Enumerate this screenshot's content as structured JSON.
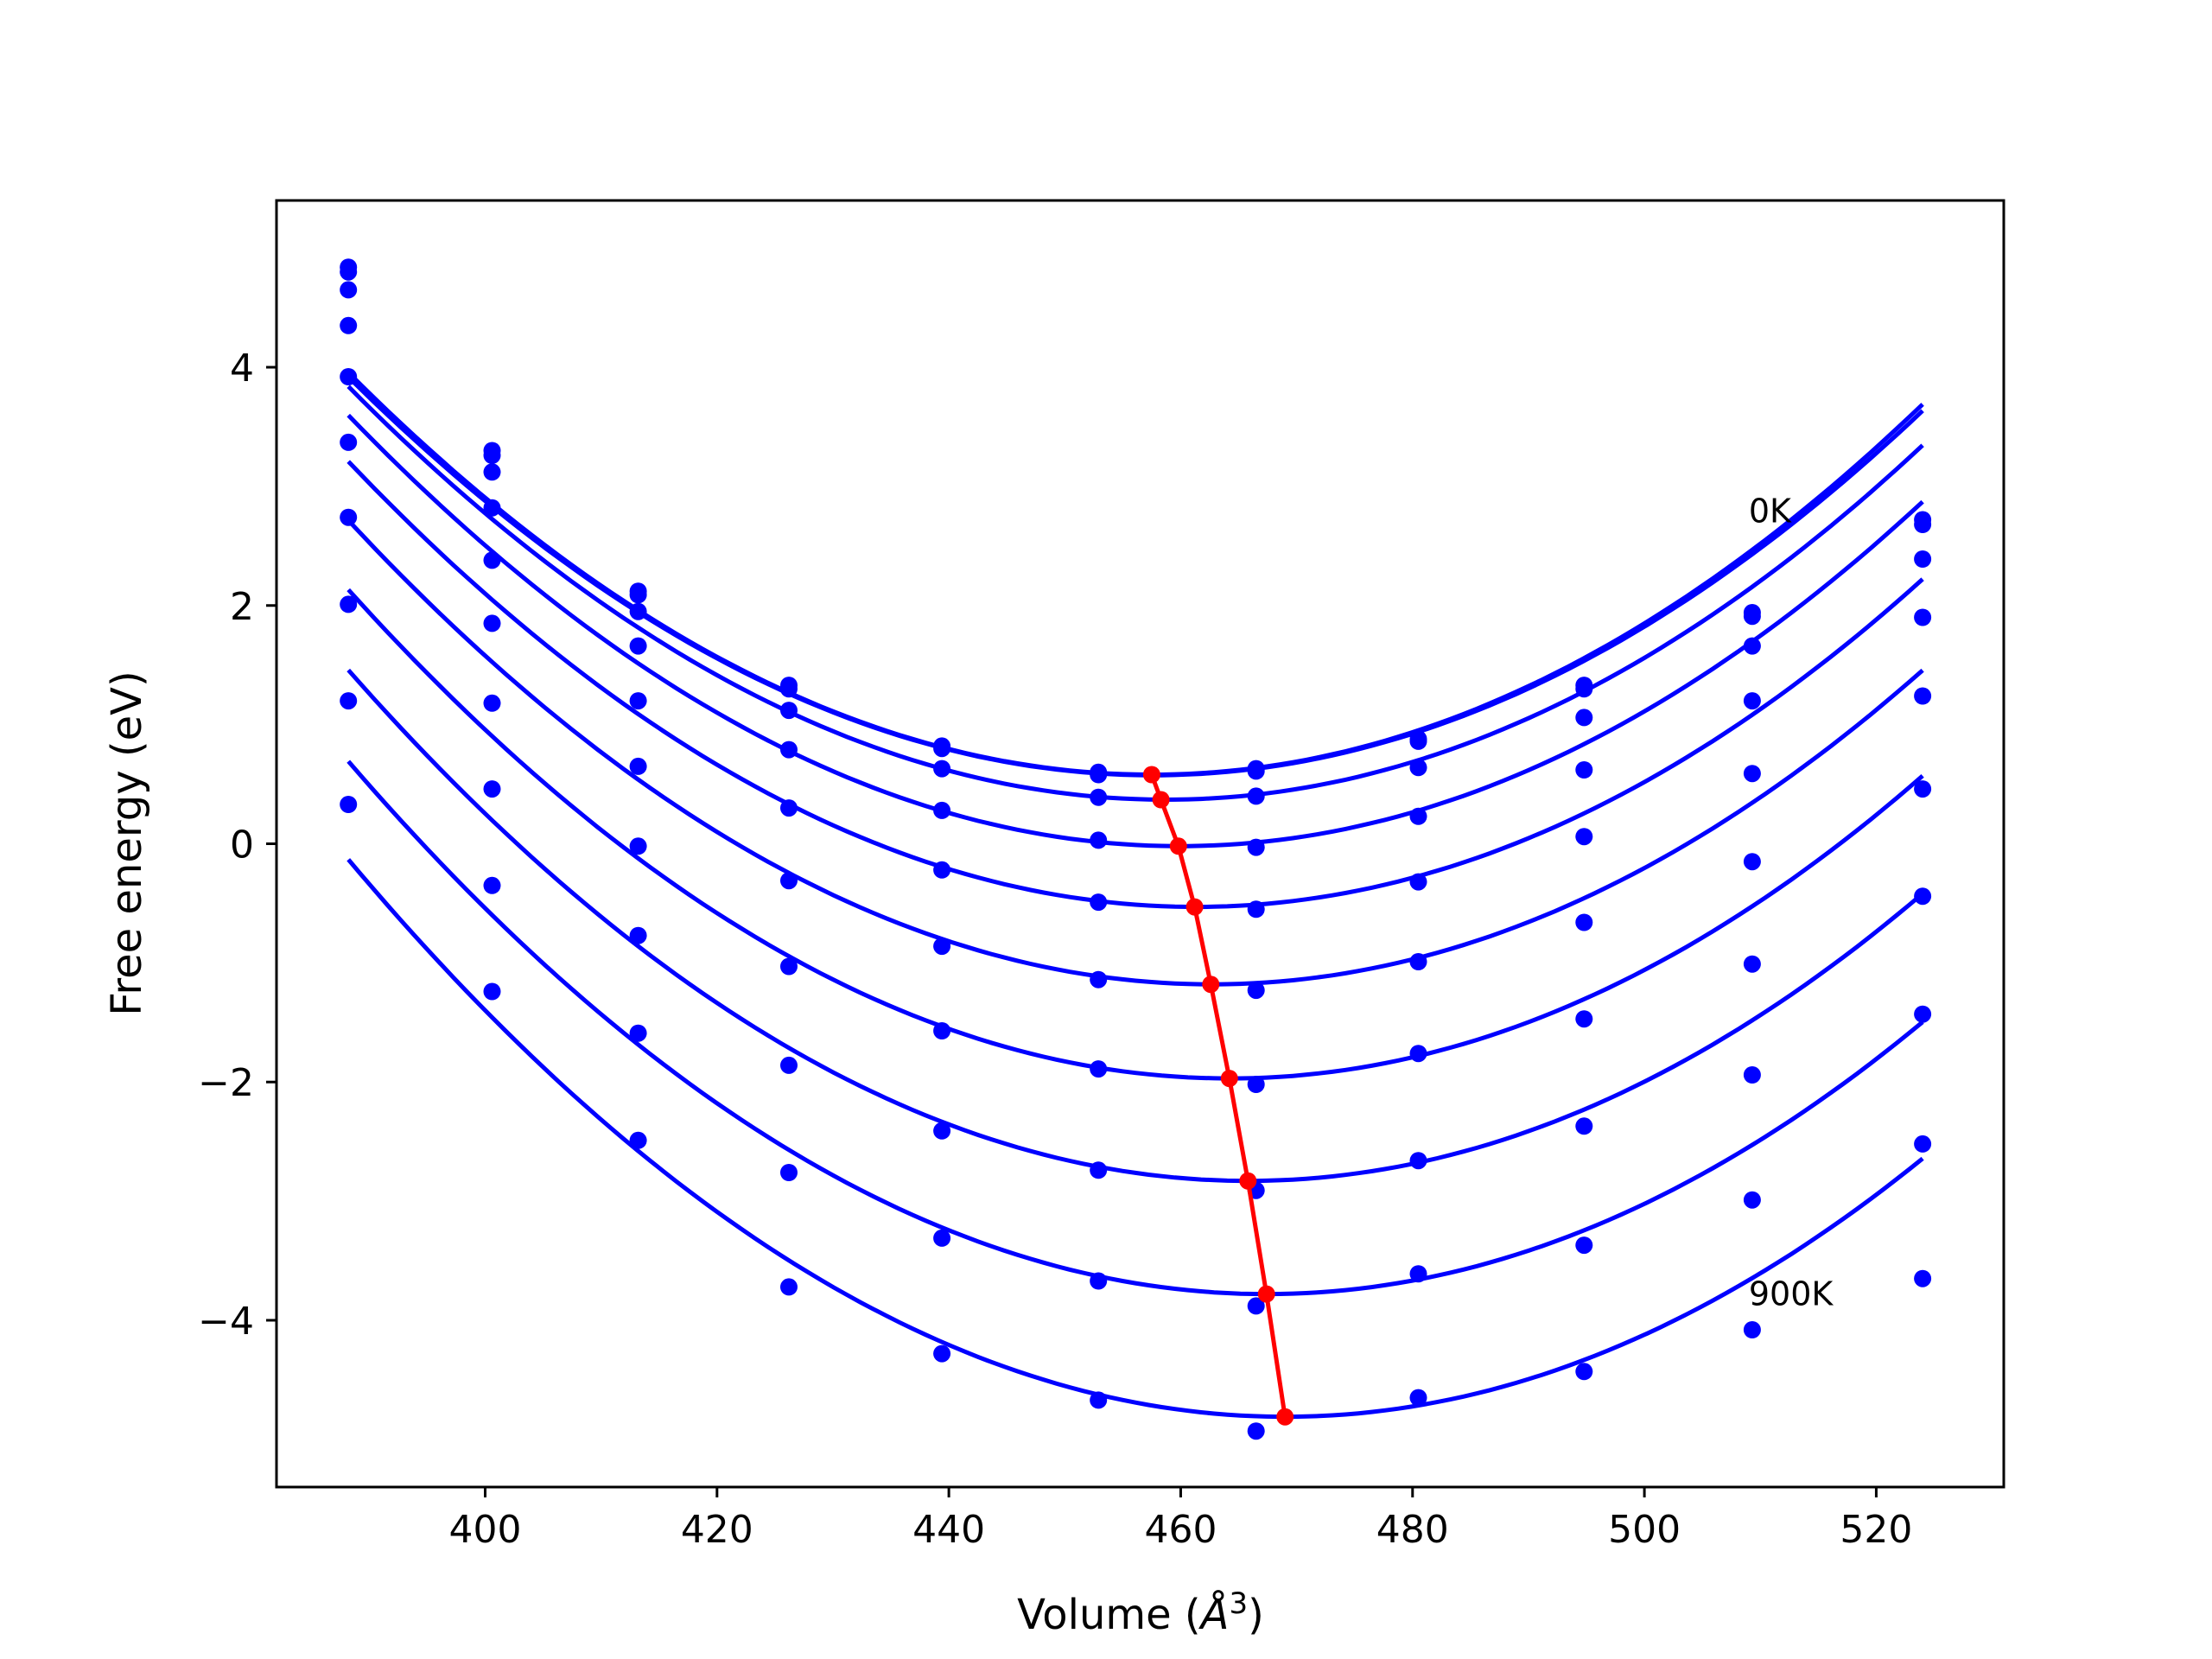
{
  "chart_data": {
    "type": "line",
    "title": "",
    "xlabel": "Volume (",
    "xlabel_unit": "Å",
    "xlabel_sup": "3",
    "xlabel_close": ")",
    "ylabel": "Free energy (eV)",
    "xlim": [
      382,
      531
    ],
    "ylim": [
      -5.4,
      5.4
    ],
    "xticks": [
      400,
      420,
      440,
      460,
      480,
      500,
      520
    ],
    "xtick_labels": [
      "400",
      "420",
      "440",
      "460",
      "480",
      "500",
      "520"
    ],
    "yticks": [
      -4,
      -2,
      0,
      2,
      4
    ],
    "ytick_labels": [
      "−4",
      "−2",
      "0",
      "2",
      "4"
    ],
    "grid": false,
    "legend": "none",
    "annotations": [
      {
        "text": "0K",
        "x": 509,
        "y": 2.8
      },
      {
        "text": "900K",
        "x": 509,
        "y": -3.77
      }
    ],
    "x": [
      388.2,
      400.6,
      413.2,
      426.2,
      439.4,
      452.9,
      466.5,
      480.5,
      494.8,
      509.3,
      524.0
    ],
    "series": [
      {
        "values": [
          4.84,
          3.3,
          2.12,
          1.33,
          0.82,
          0.6,
          0.63,
          0.88,
          1.33,
          1.94,
          2.72
        ],
        "fit_min": [
          457.5,
          0.58
        ]
      },
      {
        "values": [
          4.8,
          3.26,
          2.09,
          1.3,
          0.8,
          0.58,
          0.61,
          0.86,
          1.3,
          1.91,
          2.68
        ],
        "fit_min": [
          457.6,
          0.575
        ]
      },
      {
        "values": [
          4.65,
          3.12,
          1.95,
          1.12,
          0.63,
          0.39,
          0.4,
          0.64,
          1.06,
          1.66,
          2.39
        ],
        "fit_min": [
          458.7,
          0.37
        ]
      },
      {
        "values": [
          4.35,
          2.82,
          1.66,
          0.79,
          0.28,
          0.03,
          -0.03,
          0.23,
          0.62,
          1.2,
          1.9
        ],
        "fit_min": [
          459.9,
          -0.02
        ]
      },
      {
        "values": [
          3.92,
          2.38,
          1.2,
          0.3,
          -0.22,
          -0.49,
          -0.55,
          -0.32,
          0.06,
          0.59,
          1.24
        ],
        "fit_min": [
          461.3,
          -0.53
        ]
      },
      {
        "values": [
          3.37,
          1.85,
          0.65,
          -0.31,
          -0.86,
          -1.14,
          -1.23,
          -0.99,
          -0.66,
          -0.15,
          0.46
        ],
        "fit_min": [
          462.7,
          -1.18
        ]
      },
      {
        "values": [
          2.74,
          1.18,
          -0.02,
          -1.03,
          -1.57,
          -1.89,
          -2.02,
          -1.76,
          -1.47,
          -1.01,
          -0.44
        ],
        "fit_min": [
          464.2,
          -1.97
        ]
      },
      {
        "values": [
          2.01,
          0.46,
          -0.77,
          -1.86,
          -2.41,
          -2.74,
          -2.91,
          -2.66,
          -2.37,
          -1.94,
          -1.43
        ],
        "fit_min": [
          465.8,
          -2.83
        ]
      },
      {
        "values": [
          1.2,
          -0.35,
          -1.59,
          -2.76,
          -3.31,
          -3.67,
          -3.88,
          -3.61,
          -3.37,
          -2.99,
          -2.52
        ],
        "fit_min": [
          467.4,
          -3.78
        ]
      },
      {
        "values": [
          0.33,
          -1.24,
          -2.49,
          -3.72,
          -4.28,
          -4.67,
          -4.93,
          -4.65,
          -4.43,
          -4.08,
          -3.65
        ],
        "fit_min": [
          469.0,
          -4.81
        ]
      }
    ],
    "minimum_path": {
      "x": [
        457.5,
        458.3,
        459.8,
        461.2,
        462.6,
        464.2,
        465.8,
        467.4,
        469.0
      ],
      "y": [
        0.58,
        0.37,
        -0.02,
        -0.53,
        -1.18,
        -1.97,
        -2.83,
        -3.78,
        -4.81
      ]
    },
    "colors": {
      "points": "#0000ff",
      "curves": "#0000ff",
      "path": "#ff0000",
      "axes": "#000000",
      "background": "#ffffff"
    }
  }
}
